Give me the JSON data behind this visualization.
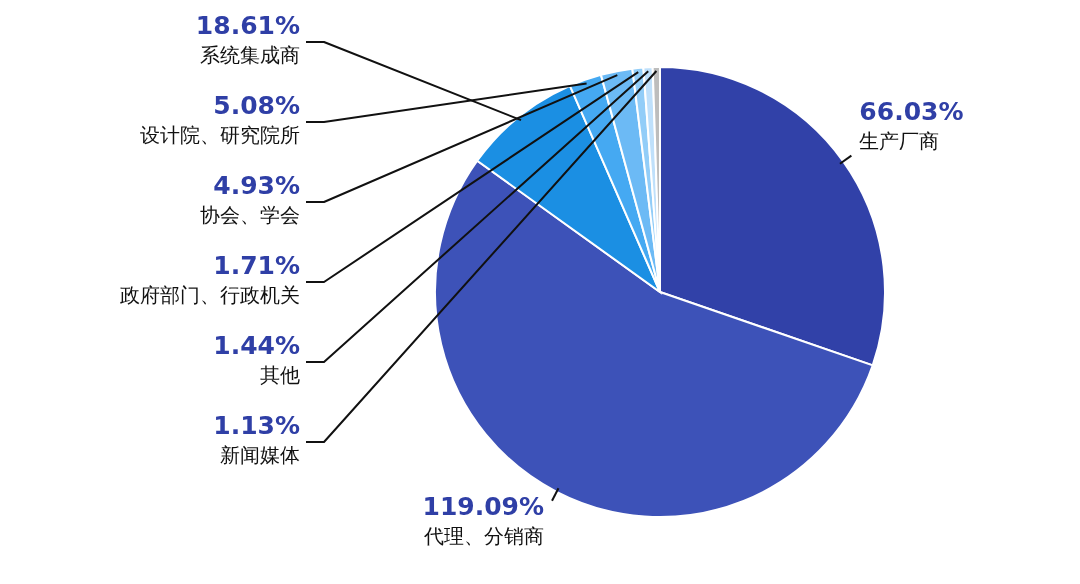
{
  "chart_data": {
    "type": "pie",
    "categories": [
      "生产厂商",
      "代理、分销商",
      "系统集成商",
      "设计院、研究院所",
      "协会、学会",
      "政府部门、行政机关",
      "其他",
      "新闻媒体"
    ],
    "values": [
      66.03,
      119.09,
      18.61,
      5.08,
      4.93,
      1.71,
      1.44,
      1.13
    ],
    "value_labels": [
      "66.03%",
      "119.09%",
      "18.61%",
      "5.08%",
      "4.93%",
      "1.71%",
      "1.44%",
      "1.13%"
    ],
    "colors": [
      "#3141a8",
      "#3d52b8",
      "#1b8fe3",
      "#45a9f2",
      "#6cbaf5",
      "#92cdf8",
      "#bfe0fb",
      "#bdbdbd"
    ]
  }
}
